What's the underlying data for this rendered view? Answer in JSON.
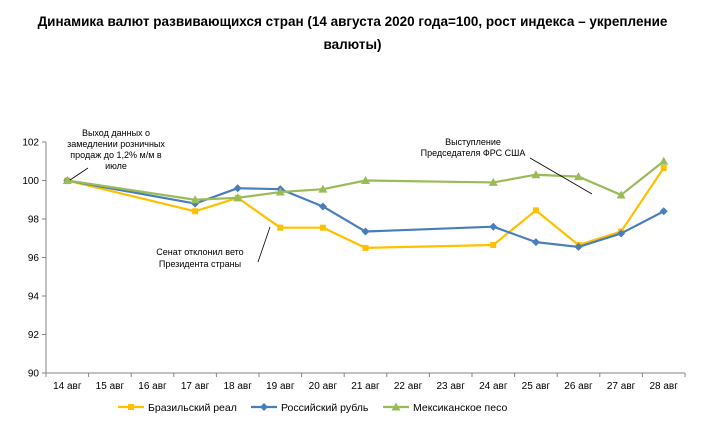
{
  "chart_data": {
    "type": "line",
    "title": "Динамика валют развивающихся стран (14 августа 2020 года=100, рост индекса – укрепление валюты)",
    "title_lines": [
      "Динамика валют развивающихся стран (14 августа 2020 года=100, рост индекса – укрепление",
      "валюты)"
    ],
    "categories": [
      "14 авг",
      "15 авг",
      "16 авг",
      "17 авг",
      "18 авг",
      "19 авг",
      "20 авг",
      "21 авг",
      "22 авг",
      "23 авг",
      "24 авг",
      "25 авг",
      "26 авг",
      "27 авг",
      "28 авг"
    ],
    "ylim": [
      90,
      102
    ],
    "yticks": [
      90,
      92,
      94,
      96,
      98,
      100,
      102
    ],
    "grid": false,
    "legend_position": "bottom",
    "series": [
      {
        "name": "Бразильский реал",
        "color": "#FFC000",
        "marker": "square",
        "values": [
          100.0,
          null,
          null,
          98.4,
          99.1,
          97.55,
          97.55,
          96.5,
          null,
          null,
          96.65,
          98.45,
          96.65,
          97.35,
          100.65
        ]
      },
      {
        "name": "Российский рубль",
        "color": "#4A7EBB",
        "marker": "diamond",
        "values": [
          100.0,
          null,
          null,
          98.8,
          99.6,
          99.55,
          98.65,
          97.35,
          null,
          null,
          97.6,
          96.8,
          96.55,
          97.25,
          98.4
        ]
      },
      {
        "name": "Мексиканское песо",
        "color": "#9BBB59",
        "marker": "triangle",
        "values": [
          100.0,
          null,
          null,
          99.0,
          99.1,
          99.4,
          99.55,
          100.0,
          null,
          null,
          99.9,
          100.3,
          100.2,
          99.25,
          101.0
        ]
      }
    ],
    "annotations": [
      {
        "lines": [
          "Выход данных о",
          "замедлении розничных",
          "продаж до 1,2% м/м в",
          "июле"
        ],
        "category": "14 авг",
        "value": 100.0
      },
      {
        "lines": [
          "Сенат отклонил вето",
          "Президента страны"
        ],
        "category": "19 авг",
        "value": 97.55
      },
      {
        "lines": [
          "Выступление",
          "Председателя ФРС США"
        ],
        "category": "27 авг",
        "value": 99.25
      }
    ]
  }
}
